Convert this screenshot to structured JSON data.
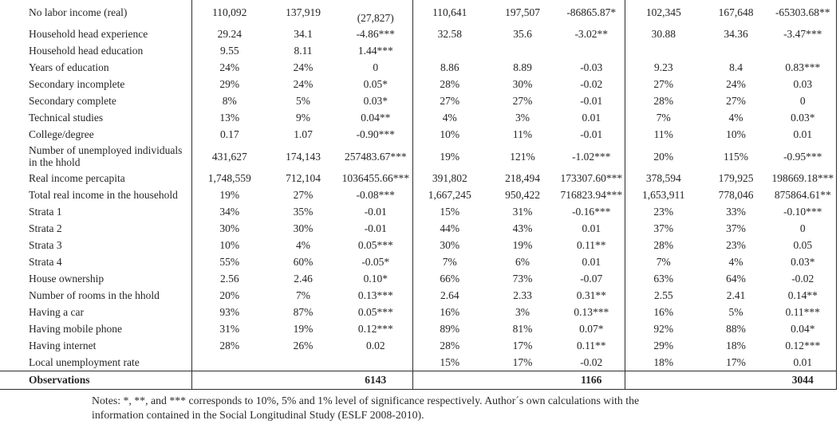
{
  "colors": {
    "text": "#262626",
    "rule": "#2e2e2e",
    "background": "#ffffff"
  },
  "table": {
    "rows": [
      {
        "label": "No labor income (real)",
        "cells": [
          "110,092",
          "137,919",
          "(27,827)",
          "110,641",
          "197,507",
          "-86865.87*",
          "102,345",
          "167,648",
          "-65303.68**"
        ]
      },
      {
        "label": "Household head experience",
        "cells": [
          "29.24",
          "34.1",
          "-4.86***",
          "32.58",
          "35.6",
          "-3.02**",
          "30.88",
          "34.36",
          "-3.47***"
        ]
      },
      {
        "label": "Household head education",
        "cells": [
          "9.55",
          "8.11",
          "1.44***",
          "",
          "",
          "",
          "",
          "",
          ""
        ]
      },
      {
        "label": "Years of education",
        "cells": [
          "24%",
          "24%",
          "0",
          "8.86",
          "8.89",
          "-0.03",
          "9.23",
          "8.4",
          "0.83***"
        ]
      },
      {
        "label": "Secondary incomplete",
        "cells": [
          "29%",
          "24%",
          "0.05*",
          "28%",
          "30%",
          "-0.02",
          "27%",
          "24%",
          "0.03"
        ]
      },
      {
        "label": "Secondary complete",
        "cells": [
          "8%",
          "5%",
          "0.03*",
          "27%",
          "27%",
          "-0.01",
          "28%",
          "27%",
          "0"
        ]
      },
      {
        "label": "Technical studies",
        "cells": [
          "13%",
          "9%",
          "0.04**",
          "4%",
          "3%",
          "0.01",
          "7%",
          "4%",
          "0.03*"
        ]
      },
      {
        "label": "College/degree",
        "cells": [
          "0.17",
          "1.07",
          "-0.90***",
          "10%",
          "11%",
          "-0.01",
          "11%",
          "10%",
          "0.01"
        ]
      },
      {
        "label": "Number of unemployed individuals in the hhold",
        "cells": [
          "431,627",
          "174,143",
          "257483.67***",
          "19%",
          "121%",
          "-1.02***",
          "20%",
          "115%",
          "-0.95***"
        ]
      },
      {
        "label": "Real income percapita",
        "cells": [
          "1,748,559",
          "712,104",
          "1036455.66***",
          "391,802",
          "218,494",
          "173307.60***",
          "378,594",
          "179,925",
          "198669.18***"
        ]
      },
      {
        "label": "Total real income in the household",
        "cells": [
          "19%",
          "27%",
          "-0.08***",
          "1,667,245",
          "950,422",
          "716823.94***",
          "1,653,911",
          "778,046",
          "875864.61**"
        ]
      },
      {
        "label": "Strata 1",
        "cells": [
          "34%",
          "35%",
          "-0.01",
          "15%",
          "31%",
          "-0.16***",
          "23%",
          "33%",
          "-0.10***"
        ]
      },
      {
        "label": "Strata 2",
        "cells": [
          "30%",
          "30%",
          "-0.01",
          "44%",
          "43%",
          "0.01",
          "37%",
          "37%",
          "0"
        ]
      },
      {
        "label": "Strata 3",
        "cells": [
          "10%",
          "4%",
          "0.05***",
          "30%",
          "19%",
          "0.11**",
          "28%",
          "23%",
          "0.05"
        ]
      },
      {
        "label": "Strata 4",
        "cells": [
          "55%",
          "60%",
          "-0.05*",
          "7%",
          "6%",
          "0.01",
          "7%",
          "4%",
          "0.03*"
        ]
      },
      {
        "label": "House ownership",
        "cells": [
          "2.56",
          "2.46",
          "0.10*",
          "66%",
          "73%",
          "-0.07",
          "63%",
          "64%",
          "-0.02"
        ]
      },
      {
        "label": "Number of rooms in the hhold",
        "cells": [
          "20%",
          "7%",
          "0.13***",
          "2.64",
          "2.33",
          "0.31**",
          "2.55",
          "2.41",
          "0.14**"
        ]
      },
      {
        "label": "Having a car",
        "cells": [
          "93%",
          "87%",
          "0.05***",
          "16%",
          "3%",
          "0.13***",
          "16%",
          "5%",
          "0.11***"
        ]
      },
      {
        "label": "Having mobile phone",
        "cells": [
          "31%",
          "19%",
          "0.12***",
          "89%",
          "81%",
          "0.07*",
          "92%",
          "88%",
          "0.04*"
        ]
      },
      {
        "label": "Having internet",
        "cells": [
          "28%",
          "26%",
          "0.02",
          "28%",
          "17%",
          "0.11**",
          "29%",
          "18%",
          "0.12***"
        ]
      },
      {
        "label": "Local unemployment rate",
        "cells": [
          "",
          "",
          "",
          "15%",
          "17%",
          "-0.02",
          "18%",
          "17%",
          "0.01"
        ]
      }
    ],
    "observations": {
      "label": "Observations",
      "values": [
        "6143",
        "1166",
        "3044"
      ]
    },
    "notes": [
      "Notes: *, **, and *** corresponds to 10%, 5% and 1% level of significance respectively. Author´s own calculations with the",
      "information contained in the Social Longitudinal Study (ESLF 2008-2010)."
    ]
  }
}
